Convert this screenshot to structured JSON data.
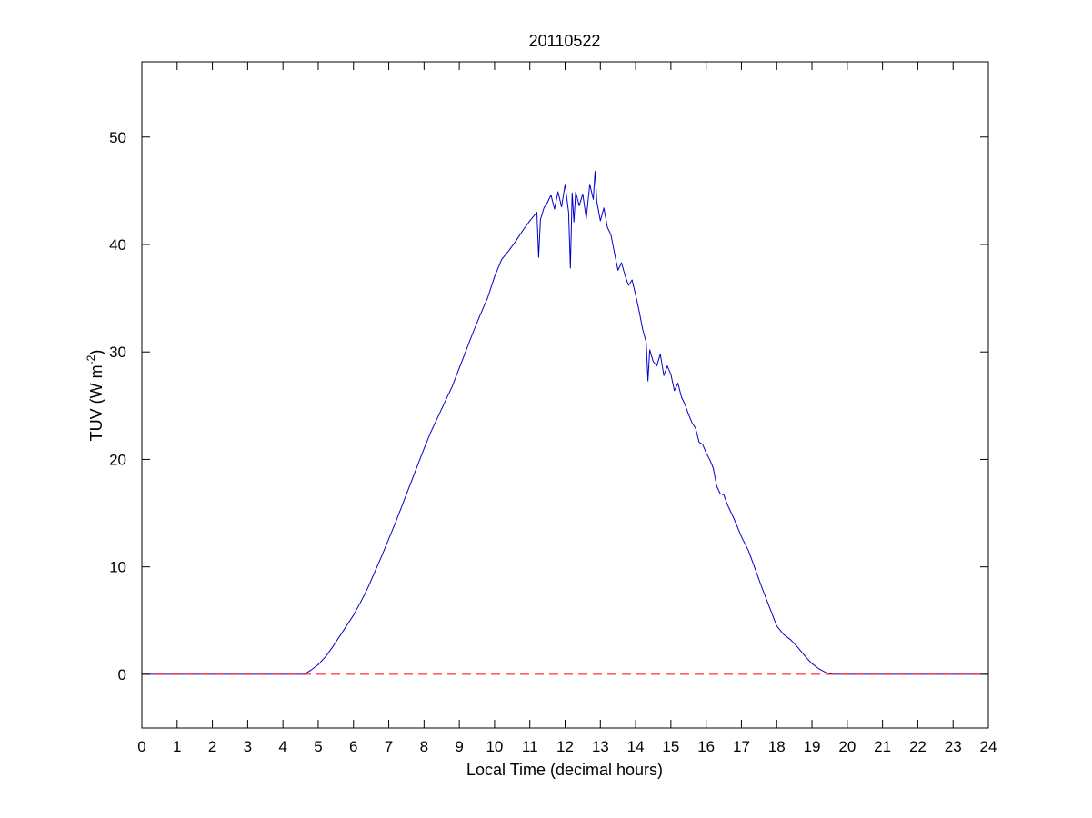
{
  "chart_data": {
    "type": "line",
    "title": "20110522",
    "xlabel": "Local Time (decimal hours)",
    "ylabel_main": "TUV (W m",
    "ylabel_superscript": "-2",
    "ylabel_close": ")",
    "xlim": [
      0,
      24
    ],
    "ylim": [
      -5,
      57
    ],
    "xticks": [
      0,
      1,
      2,
      3,
      4,
      5,
      6,
      7,
      8,
      9,
      10,
      11,
      12,
      13,
      14,
      15,
      16,
      17,
      18,
      19,
      20,
      21,
      22,
      23,
      24
    ],
    "yticks": [
      0,
      10,
      20,
      30,
      40,
      50
    ],
    "grid": false,
    "legend": "none",
    "series": [
      {
        "color": "#0000cc",
        "style": "solid",
        "x": [
          0,
          4.6,
          4.8,
          5.0,
          5.2,
          5.4,
          5.6,
          5.8,
          6.0,
          6.2,
          6.4,
          6.6,
          6.8,
          7.0,
          7.2,
          7.4,
          7.6,
          7.8,
          8.0,
          8.2,
          8.4,
          8.6,
          8.8,
          9.0,
          9.2,
          9.4,
          9.6,
          9.8,
          10.0,
          10.2,
          10.4,
          10.6,
          10.8,
          11.0,
          11.2,
          11.25,
          11.3,
          11.4,
          11.5,
          11.6,
          11.7,
          11.8,
          11.9,
          12.0,
          12.1,
          12.15,
          12.2,
          12.25,
          12.3,
          12.4,
          12.5,
          12.6,
          12.7,
          12.8,
          12.85,
          12.9,
          13.0,
          13.1,
          13.2,
          13.3,
          13.4,
          13.5,
          13.6,
          13.7,
          13.8,
          13.9,
          14.0,
          14.1,
          14.2,
          14.3,
          14.35,
          14.4,
          14.5,
          14.6,
          14.7,
          14.8,
          14.9,
          15.0,
          15.1,
          15.2,
          15.3,
          15.4,
          15.5,
          15.6,
          15.7,
          15.8,
          15.9,
          16.0,
          16.1,
          16.2,
          16.3,
          16.4,
          16.5,
          16.6,
          16.7,
          16.8,
          16.9,
          17.0,
          17.2,
          17.4,
          17.6,
          17.8,
          18.0,
          18.2,
          18.4,
          18.6,
          18.8,
          19.0,
          19.2,
          19.4,
          19.6,
          19.8,
          24
        ],
        "y": [
          0,
          0,
          0.4,
          0.9,
          1.6,
          2.5,
          3.5,
          4.5,
          5.5,
          6.7,
          8.0,
          9.5,
          11.0,
          12.6,
          14.2,
          15.9,
          17.6,
          19.3,
          21.0,
          22.6,
          24.0,
          25.4,
          26.8,
          28.5,
          30.2,
          31.9,
          33.5,
          35.0,
          37.0,
          38.6,
          39.4,
          40.3,
          41.3,
          42.2,
          43.0,
          38.8,
          42.3,
          43.4,
          43.9,
          44.6,
          43.3,
          44.9,
          43.5,
          45.6,
          43.0,
          37.8,
          44.8,
          42.1,
          44.9,
          43.6,
          44.7,
          42.4,
          45.6,
          44.2,
          46.8,
          44.0,
          42.2,
          43.4,
          41.6,
          40.9,
          39.2,
          37.6,
          38.3,
          37.1,
          36.2,
          36.7,
          35.3,
          33.8,
          32.1,
          30.9,
          27.3,
          30.2,
          29.1,
          28.7,
          29.8,
          27.8,
          28.7,
          27.9,
          26.4,
          27.1,
          25.8,
          25.1,
          24.2,
          23.4,
          22.9,
          21.6,
          21.4,
          20.6,
          20.0,
          19.2,
          17.5,
          16.8,
          16.7,
          15.8,
          15.1,
          14.4,
          13.6,
          12.8,
          11.5,
          9.7,
          7.9,
          6.2,
          4.5,
          3.7,
          3.2,
          2.5,
          1.7,
          1.0,
          0.5,
          0.15,
          0,
          0,
          0
        ]
      },
      {
        "color": "#ff0000",
        "style": "dashed",
        "x": [
          0,
          24
        ],
        "y": [
          0,
          0
        ]
      }
    ]
  }
}
